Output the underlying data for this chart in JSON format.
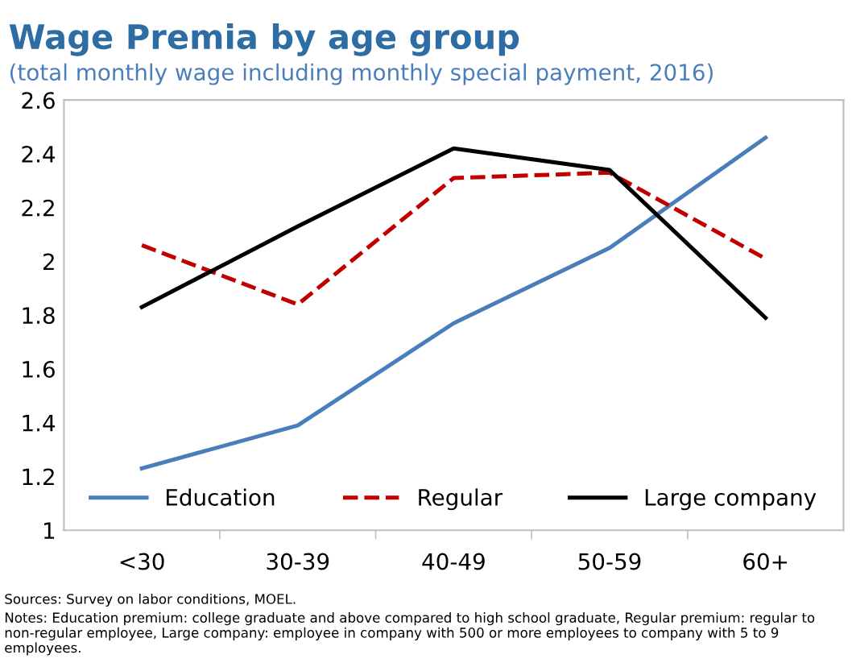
{
  "chart_data": {
    "type": "line",
    "title": "Wage Premia by age group",
    "subtitle": "(total monthly wage including monthly special payment, 2016)",
    "categories": [
      "<30",
      "30-39",
      "40-49",
      "50-59",
      "60+"
    ],
    "series": [
      {
        "name": "Education",
        "color": "#4a7ebb",
        "line_style": "solid",
        "values": [
          1.23,
          1.39,
          1.77,
          2.05,
          2.46
        ]
      },
      {
        "name": "Regular",
        "color": "#c00000",
        "line_style": "dashed",
        "values": [
          2.06,
          1.84,
          2.31,
          2.33,
          2.01
        ]
      },
      {
        "name": "Large company",
        "color": "#000000",
        "line_style": "solid",
        "values": [
          1.83,
          2.13,
          2.42,
          2.34,
          1.79
        ]
      }
    ],
    "ylim": [
      1,
      2.6
    ],
    "yticks": [
      1,
      1.2,
      1.4,
      1.6,
      1.8,
      2,
      2.2,
      2.4,
      2.6
    ],
    "grid": false,
    "legend": "bottom",
    "annotations": [
      "Sources: Survey on labor conditions, MOEL.",
      "Notes: Education premium: college graduate and above compared to high school graduate, Regular premium: regular to non-regular employee, Large company: employee in company with 500 or more employees to company with 5 to 9 employees."
    ]
  }
}
